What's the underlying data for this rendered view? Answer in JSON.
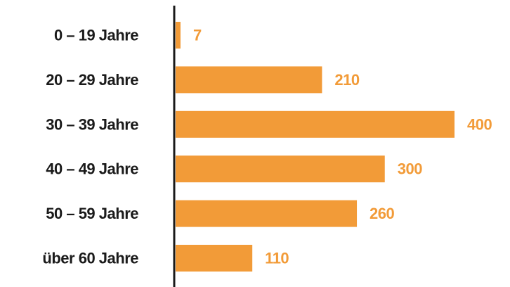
{
  "chart_data": {
    "type": "bar",
    "orientation": "horizontal",
    "categories": [
      "0 – 19 Jahre",
      "20 – 29 Jahre",
      "30 – 39 Jahre",
      "40 – 49 Jahre",
      "50 – 59 Jahre",
      "über 60 Jahre"
    ],
    "values": [
      7,
      210,
      400,
      300,
      260,
      110
    ],
    "data_labels": [
      "7",
      "210",
      "400",
      "300",
      "260",
      "110"
    ],
    "xlim": [
      0,
      400
    ],
    "grid": false,
    "legend": "none",
    "title": "",
    "xlabel": "",
    "ylabel": ""
  },
  "colors": {
    "bar": "#f29b38",
    "value_label": "#f29b38",
    "category_label": "#1a1a1a",
    "axis": "#1a1a1a"
  }
}
